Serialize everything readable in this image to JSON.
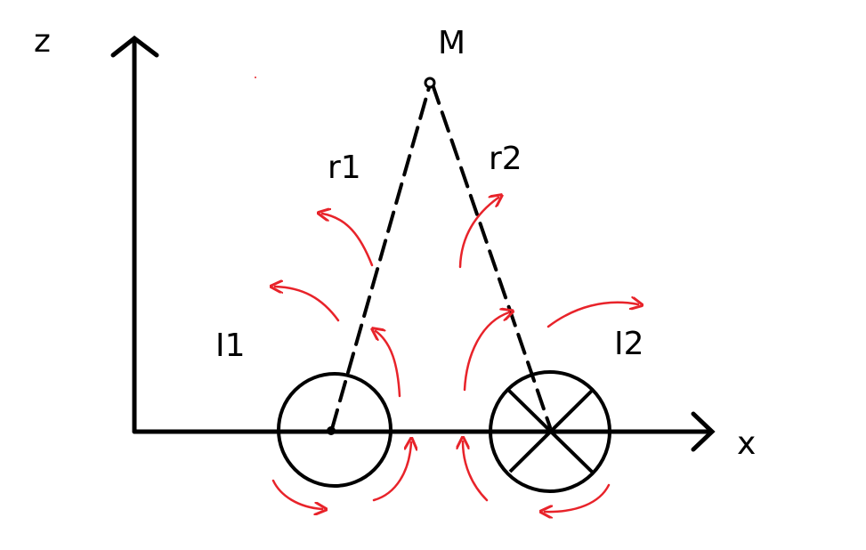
{
  "axes": {
    "vertical_label": "z",
    "horizontal_label": "x"
  },
  "point": {
    "label": "M"
  },
  "distances": {
    "r1_label": "r1",
    "r2_label": "r2"
  },
  "wires": {
    "wire1": {
      "label": "I1",
      "current_symbol": "dot (out of page)"
    },
    "wire2": {
      "label": "I2",
      "current_symbol": "cross (into page)"
    }
  },
  "colors": {
    "ink": "#000000",
    "field_lines": "#e8232a",
    "background": "#ffffff"
  }
}
